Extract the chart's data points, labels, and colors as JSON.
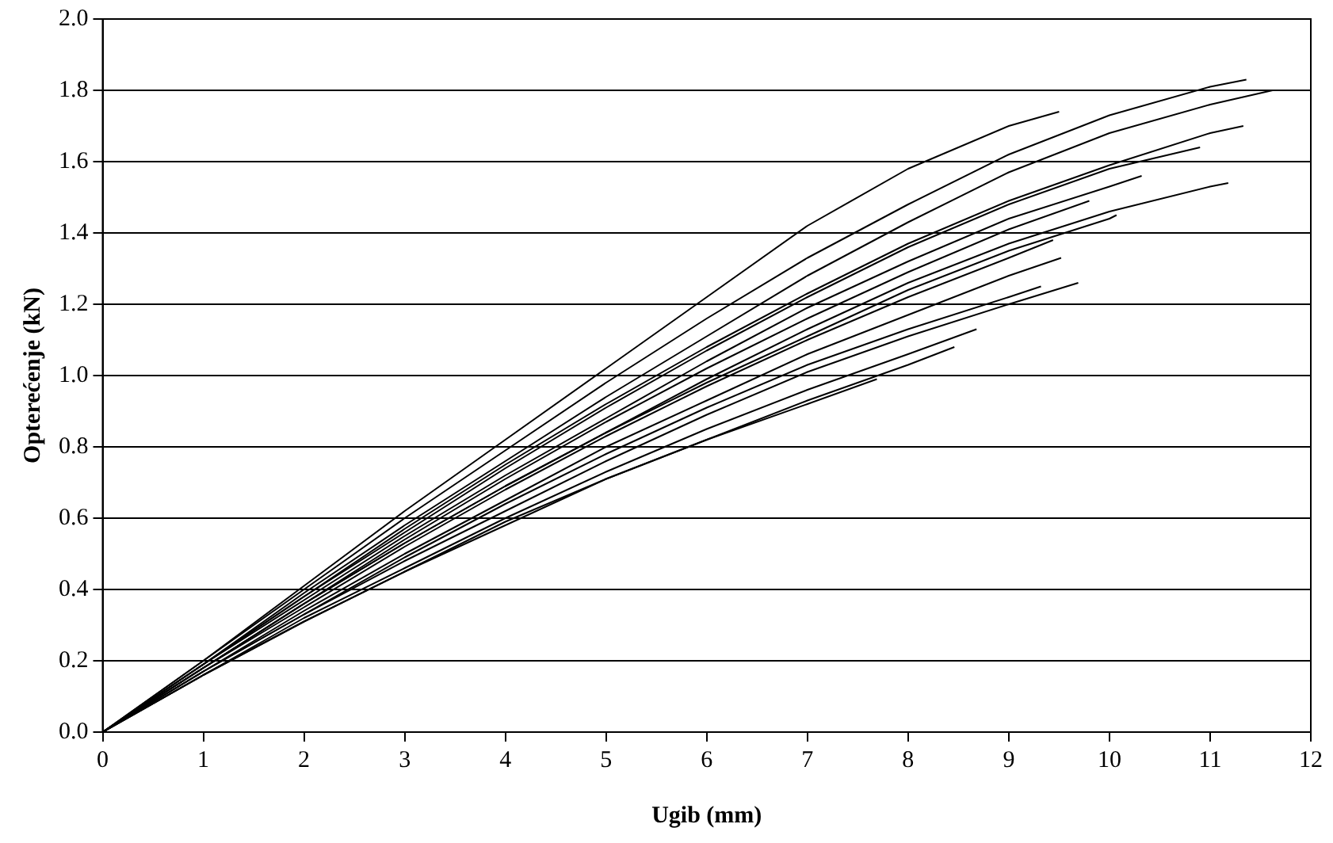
{
  "chart_data": {
    "type": "line",
    "xlabel": "Ugib (mm)",
    "ylabel": "Opterećenje (kN)",
    "xlim": [
      0,
      12
    ],
    "xticks": [
      0,
      1,
      2,
      3,
      4,
      5,
      6,
      7,
      8,
      9,
      10,
      11,
      12
    ],
    "ylim": [
      0,
      2
    ],
    "yticks": [
      {
        "value": 0,
        "label": "0.0"
      },
      {
        "value": 0.2,
        "label": "0.2"
      },
      {
        "value": 0.4,
        "label": "0.4"
      },
      {
        "value": 0.6,
        "label": "0.6"
      },
      {
        "value": 0.8,
        "label": "0.8"
      },
      {
        "value": 1,
        "label": "1.0"
      },
      {
        "value": 1.2,
        "label": "1.2"
      },
      {
        "value": 1.4,
        "label": "1.4"
      },
      {
        "value": 1.6,
        "label": "1.6"
      },
      {
        "value": 1.8,
        "label": "1.8"
      },
      {
        "value": 2,
        "label": "2.0"
      }
    ],
    "grid": "y",
    "legend": false,
    "marker": "none",
    "line_style": "solid",
    "series": [
      {
        "color": "#000000",
        "x": [
          0,
          1,
          2,
          3,
          4,
          5,
          6,
          7,
          8,
          9,
          9.5
        ],
        "values": [
          0,
          0.2,
          0.41,
          0.62,
          0.82,
          1.02,
          1.22,
          1.42,
          1.58,
          1.7,
          1.74
        ]
      },
      {
        "color": "#000000",
        "x": [
          0,
          1,
          2,
          3,
          4,
          5,
          6,
          7,
          8,
          9,
          10,
          11,
          11.36
        ],
        "values": [
          0,
          0.2,
          0.4,
          0.6,
          0.79,
          0.98,
          1.16,
          1.33,
          1.48,
          1.62,
          1.73,
          1.81,
          1.83
        ]
      },
      {
        "color": "#000000",
        "x": [
          0,
          1,
          2,
          3,
          4,
          5,
          6,
          7,
          8,
          9,
          10,
          11,
          11.62
        ],
        "values": [
          0,
          0.19,
          0.39,
          0.58,
          0.76,
          0.94,
          1.11,
          1.28,
          1.43,
          1.57,
          1.68,
          1.76,
          1.8
        ]
      },
      {
        "color": "#000000",
        "x": [
          0,
          1,
          2,
          3,
          4,
          5,
          6,
          7,
          8,
          9,
          10,
          11,
          11.33
        ],
        "values": [
          0,
          0.19,
          0.38,
          0.57,
          0.75,
          0.92,
          1.08,
          1.23,
          1.37,
          1.49,
          1.59,
          1.68,
          1.7
        ]
      },
      {
        "color": "#000000",
        "x": [
          0,
          1,
          2,
          3,
          4,
          5,
          6,
          7,
          8,
          9,
          10,
          10.9
        ],
        "values": [
          0,
          0.19,
          0.38,
          0.56,
          0.74,
          0.91,
          1.07,
          1.22,
          1.36,
          1.48,
          1.58,
          1.64
        ]
      },
      {
        "color": "#000000",
        "x": [
          0,
          1,
          2,
          3,
          4,
          5,
          6,
          7,
          8,
          9,
          10,
          11,
          11.18
        ],
        "values": [
          0,
          0.18,
          0.36,
          0.53,
          0.69,
          0.84,
          0.99,
          1.13,
          1.26,
          1.37,
          1.46,
          1.53,
          1.54
        ]
      },
      {
        "color": "#000000",
        "x": [
          0,
          1,
          2,
          3,
          4,
          5,
          6,
          7,
          8,
          9,
          10,
          10.32
        ],
        "values": [
          0,
          0.19,
          0.37,
          0.55,
          0.72,
          0.88,
          1.04,
          1.19,
          1.32,
          1.44,
          1.53,
          1.56
        ]
      },
      {
        "color": "#000000",
        "x": [
          0,
          1,
          2,
          3,
          4,
          5,
          6,
          7,
          8,
          9,
          9.8
        ],
        "values": [
          0,
          0.18,
          0.36,
          0.54,
          0.71,
          0.87,
          1.02,
          1.16,
          1.29,
          1.41,
          1.49
        ]
      },
      {
        "color": "#000000",
        "x": [
          0,
          1,
          2,
          3,
          4,
          5,
          6,
          7,
          8,
          9,
          10,
          10.07
        ],
        "values": [
          0,
          0.18,
          0.36,
          0.53,
          0.69,
          0.84,
          0.98,
          1.11,
          1.24,
          1.35,
          1.44,
          1.45
        ]
      },
      {
        "color": "#000000",
        "x": [
          0,
          1,
          2,
          3,
          4,
          5,
          6,
          7,
          8,
          9,
          9.44
        ],
        "values": [
          0,
          0.18,
          0.35,
          0.52,
          0.68,
          0.83,
          0.97,
          1.1,
          1.22,
          1.33,
          1.38
        ]
      },
      {
        "color": "#000000",
        "x": [
          0,
          1,
          2,
          3,
          4,
          5,
          6,
          7,
          8,
          9,
          9.52
        ],
        "values": [
          0,
          0.17,
          0.34,
          0.5,
          0.65,
          0.8,
          0.93,
          1.06,
          1.17,
          1.28,
          1.33
        ]
      },
      {
        "color": "#000000",
        "x": [
          0,
          1,
          2,
          3,
          4,
          5,
          6,
          7,
          8,
          9,
          9.69
        ],
        "values": [
          0,
          0.17,
          0.33,
          0.48,
          0.62,
          0.76,
          0.89,
          1.01,
          1.11,
          1.2,
          1.26
        ]
      },
      {
        "color": "#000000",
        "x": [
          0,
          1,
          2,
          3,
          4,
          5,
          6,
          7,
          8,
          9,
          9.32
        ],
        "values": [
          0,
          0.17,
          0.33,
          0.49,
          0.64,
          0.78,
          0.91,
          1.03,
          1.13,
          1.22,
          1.25
        ]
      },
      {
        "color": "#000000",
        "x": [
          0,
          1,
          2,
          3,
          4,
          5,
          6,
          7,
          8,
          8.68
        ],
        "values": [
          0,
          0.16,
          0.32,
          0.46,
          0.6,
          0.73,
          0.85,
          0.96,
          1.06,
          1.13
        ]
      },
      {
        "color": "#000000",
        "x": [
          0,
          1,
          2,
          3,
          4,
          5,
          6,
          7,
          8,
          8.46
        ],
        "values": [
          0,
          0.16,
          0.31,
          0.45,
          0.58,
          0.71,
          0.82,
          0.93,
          1.03,
          1.08
        ]
      },
      {
        "color": "#000000",
        "x": [
          0,
          1,
          2,
          3,
          4,
          5,
          6,
          7,
          7.69
        ],
        "values": [
          0,
          0.16,
          0.31,
          0.45,
          0.59,
          0.71,
          0.82,
          0.92,
          0.99
        ]
      }
    ]
  }
}
